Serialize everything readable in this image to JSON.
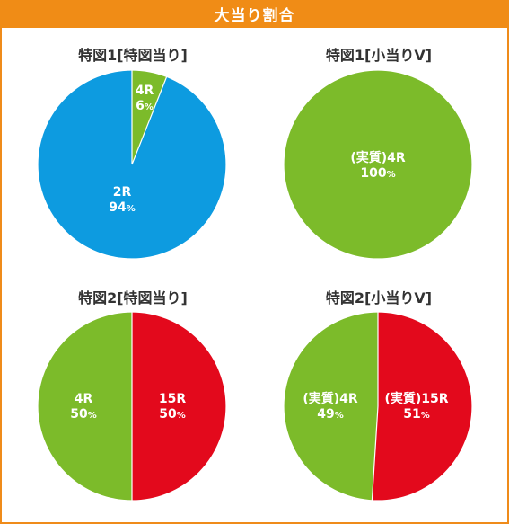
{
  "header": {
    "title": "大当り割合"
  },
  "colors": {
    "blue": "#0d9be0",
    "green": "#7cbb2a",
    "red": "#e3091c",
    "orange": "#f08c16"
  },
  "chart_data": [
    {
      "type": "pie",
      "title": "特図1[特図当り]",
      "slices": [
        {
          "name": "4R",
          "value": 6,
          "value_text": "6",
          "unit": "%",
          "color": "#7cbb2a"
        },
        {
          "name": "2R",
          "value": 94,
          "value_text": "94",
          "unit": "%",
          "color": "#0d9be0"
        }
      ]
    },
    {
      "type": "pie",
      "title": "特図1[小当りV]",
      "slices": [
        {
          "name": "(実質)4R",
          "value": 100,
          "value_text": "100",
          "unit": "%",
          "color": "#7cbb2a"
        }
      ]
    },
    {
      "type": "pie",
      "title": "特図2[特図当り]",
      "slices": [
        {
          "name": "15R",
          "value": 50,
          "value_text": "50",
          "unit": "%",
          "color": "#e3091c"
        },
        {
          "name": "4R",
          "value": 50,
          "value_text": "50",
          "unit": "%",
          "color": "#7cbb2a"
        }
      ]
    },
    {
      "type": "pie",
      "title": "特図2[小当りV]",
      "slices": [
        {
          "name": "(実質)15R",
          "value": 51,
          "value_text": "51",
          "unit": "%",
          "color": "#e3091c"
        },
        {
          "name": "(実質)4R",
          "value": 49,
          "value_text": "49",
          "unit": "%",
          "color": "#7cbb2a"
        }
      ]
    }
  ]
}
